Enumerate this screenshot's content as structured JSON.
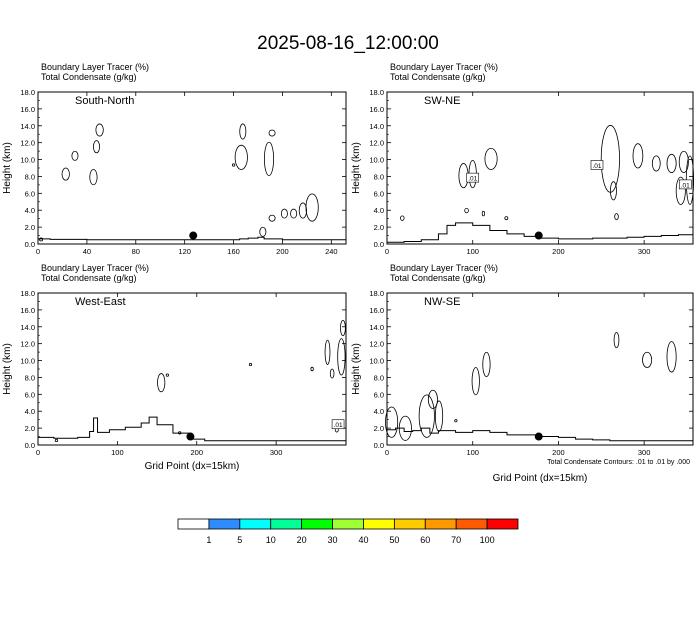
{
  "title": "2025-08-16_12:00:00",
  "panel_titles": {
    "line1": "Boundary Layer Tracer   (%)",
    "line2": "Total Condensate   (g/kg)"
  },
  "ylabel": "Height (km)",
  "xlabel": "Grid Point (dx=15km)",
  "contour_note": "Total Condensate Contours: .01 to .01 by .000",
  "colorbar": {
    "colors": [
      "#ffffff",
      "#2f8cff",
      "#00ffff",
      "#00ff96",
      "#00ff00",
      "#a0ff32",
      "#ffff00",
      "#ffcc00",
      "#ff9900",
      "#ff5a00",
      "#ff0000"
    ],
    "labels": [
      "1",
      "5",
      "10",
      "20",
      "30",
      "40",
      "50",
      "60",
      "70",
      "100"
    ]
  },
  "chart_data": [
    {
      "type": "line",
      "name": "South-North",
      "xlim": [
        0,
        252
      ],
      "ylim": [
        0,
        18
      ],
      "xticks": [
        0,
        40,
        80,
        120,
        160,
        200,
        240
      ],
      "yticks": [
        "0.0",
        "2.0",
        "4.0",
        "6.0",
        "8.0",
        "10.0",
        "12.0",
        "14.0",
        "16.0",
        "18.0"
      ],
      "marker": {
        "x": 127,
        "y": 1.0
      },
      "boundary_layer_top": {
        "x": [
          0,
          10,
          40,
          80,
          120,
          150,
          165,
          172,
          180,
          185,
          200,
          252
        ],
        "y": [
          0.6,
          0.55,
          0.5,
          0.5,
          0.5,
          0.5,
          0.6,
          0.7,
          0.8,
          0.6,
          0.5,
          0.5
        ]
      },
      "contour_labels": []
    },
    {
      "type": "line",
      "name": "SW-NE",
      "xlim": [
        0,
        357
      ],
      "ylim": [
        0,
        18
      ],
      "xticks": [
        0,
        100,
        200,
        300
      ],
      "yticks": [
        "0.0",
        "2.0",
        "4.0",
        "6.0",
        "8.0",
        "10.0",
        "12.0",
        "14.0",
        "16.0",
        "18.0"
      ],
      "marker": {
        "x": 177,
        "y": 1.0
      },
      "boundary_layer_top": {
        "x": [
          0,
          20,
          40,
          60,
          70,
          80,
          100,
          120,
          140,
          160,
          180,
          200,
          220,
          240,
          260,
          280,
          300,
          320,
          340,
          357
        ],
        "y": [
          0.2,
          0.3,
          0.5,
          1.2,
          2.2,
          2.5,
          2.2,
          1.6,
          1.2,
          0.9,
          0.7,
          0.6,
          0.6,
          0.7,
          0.7,
          0.8,
          0.9,
          1.0,
          1.1,
          1.2
        ]
      },
      "contour_labels": [
        {
          "text": ".01",
          "x": 100,
          "y": 7.8
        },
        {
          "text": ".01",
          "x": 245,
          "y": 9.3
        },
        {
          "text": ".01",
          "x": 348,
          "y": 7.0
        }
      ]
    },
    {
      "type": "line",
      "name": "West-East",
      "xlim": [
        0,
        388
      ],
      "ylim": [
        0,
        18
      ],
      "xticks": [
        0,
        100,
        200,
        300
      ],
      "yticks": [
        "0.0",
        "2.0",
        "4.0",
        "6.0",
        "8.0",
        "10.0",
        "12.0",
        "14.0",
        "16.0",
        "18.0"
      ],
      "marker": {
        "x": 192,
        "y": 1.0
      },
      "boundary_layer_top": {
        "x": [
          0,
          20,
          50,
          65,
          70,
          75,
          90,
          110,
          130,
          140,
          150,
          170,
          190,
          210,
          240,
          270,
          300,
          330,
          360,
          388
        ],
        "y": [
          0.9,
          0.8,
          0.9,
          1.6,
          3.2,
          1.5,
          1.8,
          2.1,
          2.6,
          3.3,
          2.4,
          1.4,
          0.7,
          0.5,
          0.5,
          0.5,
          0.5,
          0.5,
          0.5,
          0.5
        ]
      },
      "contour_labels": [
        {
          "text": ".01",
          "x": 378,
          "y": 2.4
        }
      ]
    },
    {
      "type": "line",
      "name": "NW-SE",
      "xlim": [
        0,
        357
      ],
      "ylim": [
        0,
        18
      ],
      "xticks": [
        0,
        100,
        200,
        300
      ],
      "yticks": [
        "0.0",
        "2.0",
        "4.0",
        "6.0",
        "8.0",
        "10.0",
        "12.0",
        "14.0",
        "16.0",
        "18.0"
      ],
      "marker": {
        "x": 177,
        "y": 1.0
      },
      "boundary_layer_top": {
        "x": [
          0,
          10,
          20,
          30,
          40,
          50,
          60,
          80,
          100,
          120,
          140,
          160,
          180,
          200,
          220,
          240,
          260,
          280,
          300,
          320,
          340,
          357
        ],
        "y": [
          1.8,
          2.0,
          1.6,
          1.7,
          2.0,
          1.4,
          1.7,
          1.5,
          1.7,
          1.5,
          1.2,
          1.2,
          1.0,
          0.9,
          0.7,
          0.6,
          0.5,
          0.5,
          0.5,
          0.5,
          0.5,
          0.5
        ]
      },
      "contour_labels": []
    }
  ]
}
